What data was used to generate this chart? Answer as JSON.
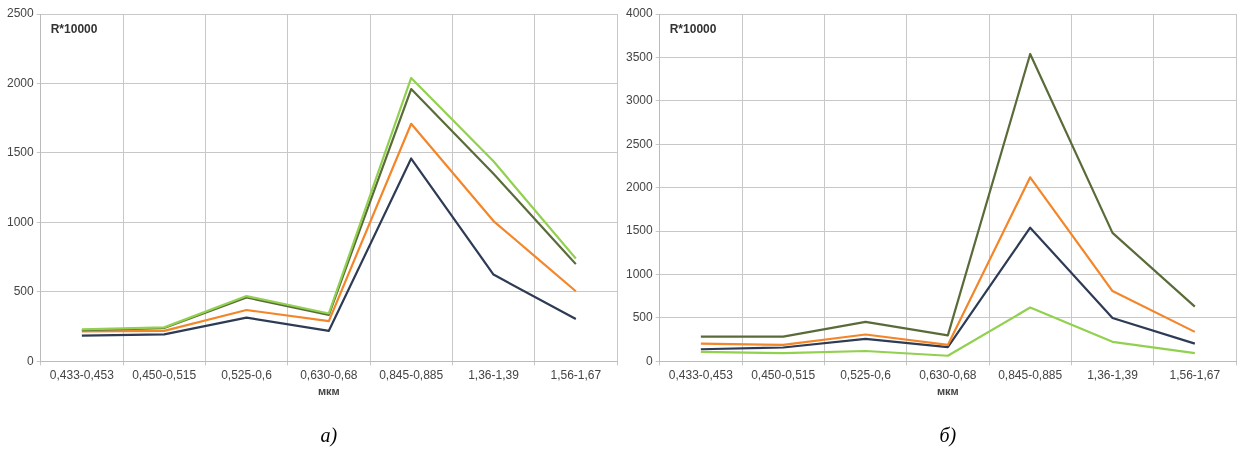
{
  "chart_data": [
    {
      "type": "line",
      "xlabel": "мкм",
      "annotations": [
        "R*10000",
        "а)"
      ],
      "categories": [
        "0,433-0,453",
        "0,450-0,515",
        "0,525-0,6",
        "0,630-0,68",
        "0,845-0,885",
        "1,36-1,39",
        "1,56-1,67"
      ],
      "ylim": [
        0,
        2500
      ],
      "yticks": [
        0,
        500,
        1000,
        1500,
        2000,
        2500
      ],
      "grid": true,
      "legend": false,
      "marker": "none",
      "series": [
        {
          "color": "#92d050",
          "values": [
            230,
            245,
            470,
            345,
            2040,
            1440,
            740
          ]
        },
        {
          "color": "#5a6b3a",
          "values": [
            225,
            240,
            460,
            335,
            1960,
            1350,
            700
          ]
        },
        {
          "color": "#f4862a",
          "values": [
            215,
            220,
            370,
            290,
            1710,
            1010,
            505
          ]
        },
        {
          "color": "#2e3b55",
          "values": [
            185,
            195,
            315,
            220,
            1460,
            625,
            305
          ]
        }
      ]
    },
    {
      "type": "line",
      "xlabel": "мкм",
      "annotations": [
        "R*10000",
        "б)"
      ],
      "categories": [
        "0,433-0,453",
        "0,450-0,515",
        "0,525-0,6",
        "0,630-0,68",
        "0,845-0,885",
        "1,36-1,39",
        "1,56-1,67"
      ],
      "ylim": [
        0,
        4000
      ],
      "yticks": [
        0,
        500,
        1000,
        1500,
        2000,
        2500,
        3000,
        3500,
        4000
      ],
      "grid": true,
      "legend": false,
      "marker": "none",
      "series": [
        {
          "color": "#5a6b3a",
          "values": [
            285,
            285,
            455,
            300,
            3540,
            1480,
            630
          ]
        },
        {
          "color": "#f4862a",
          "values": [
            205,
            190,
            310,
            190,
            2120,
            810,
            340
          ]
        },
        {
          "color": "#2e3b55",
          "values": [
            140,
            160,
            260,
            165,
            1540,
            500,
            205
          ]
        },
        {
          "color": "#92d050",
          "values": [
            110,
            95,
            120,
            65,
            620,
            225,
            95
          ]
        }
      ]
    }
  ]
}
